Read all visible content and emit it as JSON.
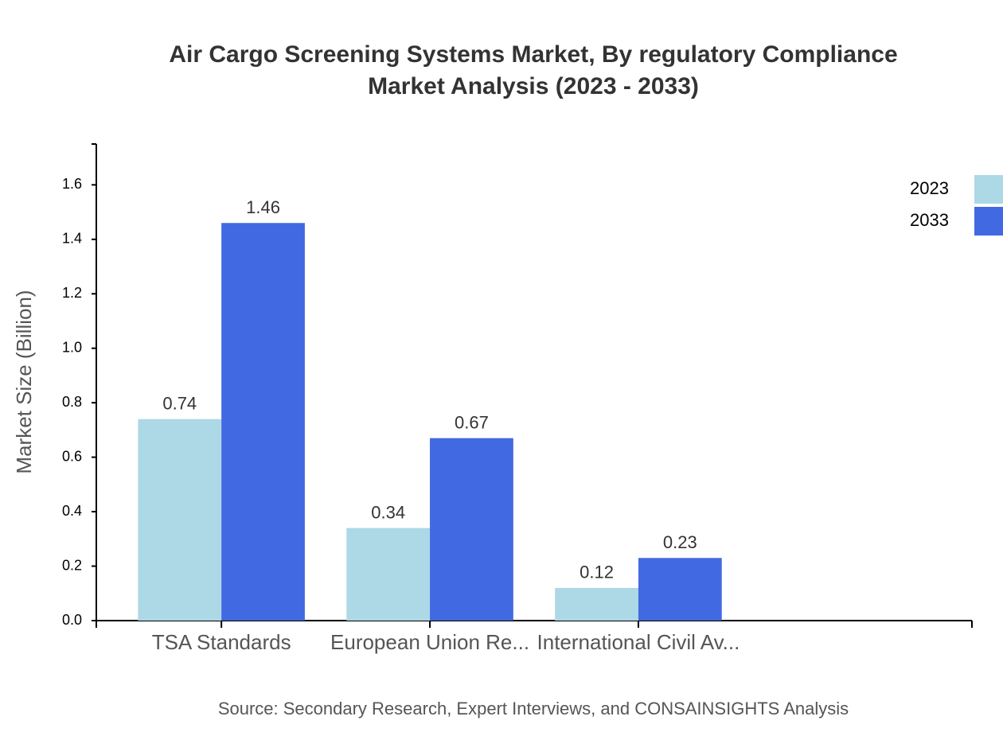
{
  "chart_data": {
    "type": "bar",
    "title": [
      "Air Cargo Screening Systems Market, By regulatory Compliance",
      "Market Analysis (2023 - 2033)"
    ],
    "y_label": "Market Size (Billion)",
    "source": "Source: Secondary Research, Expert Interviews, and CONSAINSIGHTS Analysis",
    "categories": [
      "TSA Standards",
      "European Union Re...",
      "International Civil Av..."
    ],
    "series": [
      {
        "name": "2023",
        "color": "#add8e6",
        "values": [
          0.74,
          0.34,
          0.12
        ]
      },
      {
        "name": "2033",
        "color": "#4169e1",
        "values": [
          1.46,
          0.67,
          0.23
        ]
      }
    ],
    "ylim": [
      0,
      1.75
    ],
    "yticks": [
      {
        "value": 0,
        "label": "0.0"
      },
      0.2,
      0.4,
      0.6,
      0.8,
      {
        "value": 1,
        "label": "1.0"
      },
      1.2,
      1.4,
      1.6
    ],
    "legend": "top-right"
  }
}
